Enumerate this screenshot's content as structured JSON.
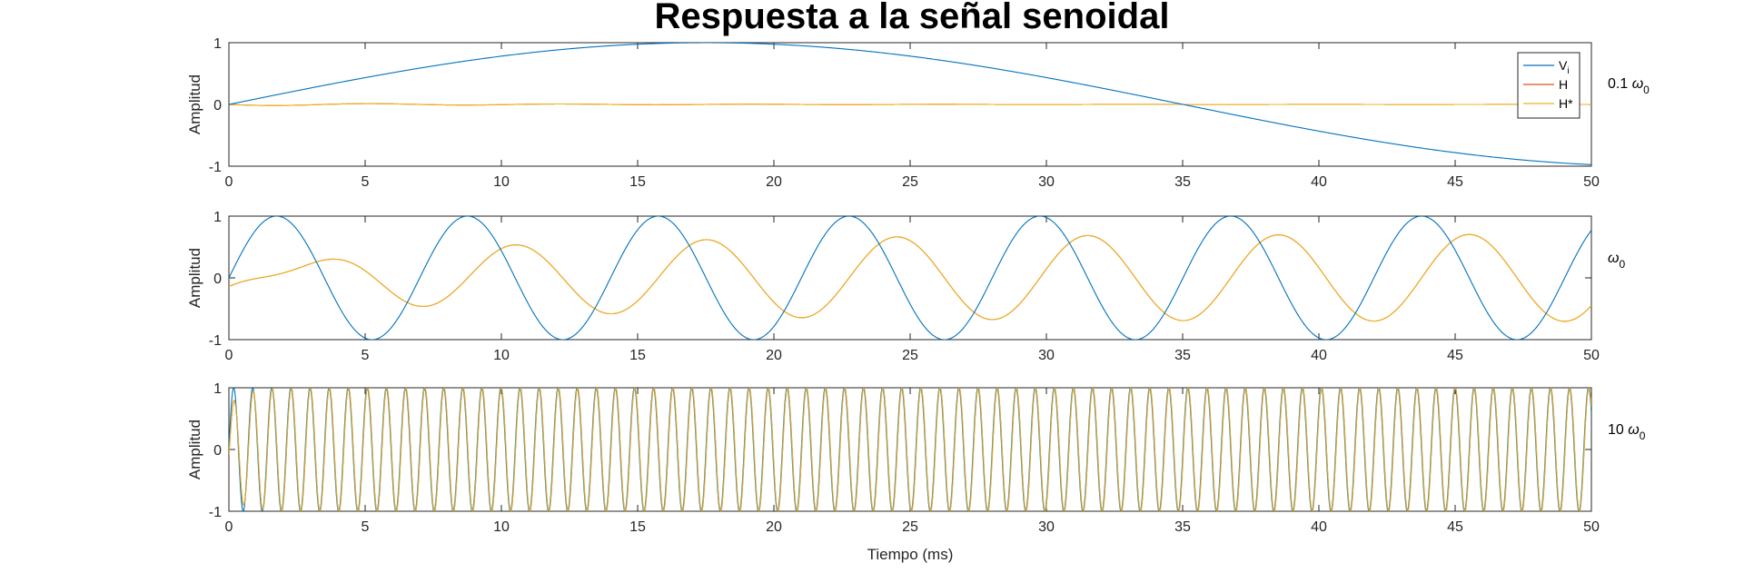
{
  "title": "Respuesta a la señal senoidal",
  "xlabel": "Tiempo (ms)",
  "ylabel": "Amplitud",
  "colors": {
    "Vi": "#0072BD",
    "H": "#D95319",
    "Hstar": "#EDB120"
  },
  "legend": {
    "placement": "top-right",
    "entries": [
      {
        "main": "V",
        "sub": "i"
      },
      {
        "main": "H",
        "sub": ""
      },
      {
        "main": "H*",
        "sub": ""
      }
    ]
  },
  "chart_data": [
    {
      "type": "line",
      "row_label": {
        "prefix": "0.1 ",
        "symbol": "ω",
        "sub": "0"
      },
      "x_ticks": [
        0,
        5,
        10,
        15,
        20,
        25,
        30,
        35,
        40,
        45,
        50
      ],
      "y_ticks": [
        -1,
        0,
        1
      ],
      "xlim": [
        0,
        50
      ],
      "ylim": [
        -1,
        1
      ],
      "grid": false,
      "series": [
        {
          "name": "Vi",
          "function": "sin(2*pi*f*t)",
          "frequency_kHz": 0.01428,
          "amplitude": 1
        },
        {
          "name": "H",
          "behavior": "hidden beneath H*"
        },
        {
          "name": "H*",
          "behavior": "small transient near 0 decaying to 0",
          "amplitude": 0.02
        }
      ]
    },
    {
      "type": "line",
      "row_label": {
        "prefix": "",
        "symbol": "ω",
        "sub": "0"
      },
      "x_ticks": [
        0,
        5,
        10,
        15,
        20,
        25,
        30,
        35,
        40,
        45,
        50
      ],
      "y_ticks": [
        -1,
        0,
        1
      ],
      "xlim": [
        0,
        50
      ],
      "ylim": [
        -1,
        1
      ],
      "grid": false,
      "series": [
        {
          "name": "Vi",
          "function": "sin(2*pi*f*t)",
          "frequency_kHz": 0.1428,
          "amplitude": 1
        },
        {
          "name": "H",
          "behavior": "hidden beneath H*"
        },
        {
          "name": "H*",
          "behavior": "oscillation with growing amplitude toward 0.707, lagging Vi by 90°",
          "steady_amplitude": 0.707
        }
      ]
    },
    {
      "type": "line",
      "row_label": {
        "prefix": "10 ",
        "symbol": "ω",
        "sub": "0"
      },
      "x_ticks": [
        0,
        5,
        10,
        15,
        20,
        25,
        30,
        35,
        40,
        45,
        50
      ],
      "y_ticks": [
        -1,
        0,
        1
      ],
      "xlim": [
        0,
        50
      ],
      "ylim": [
        -1,
        1
      ],
      "grid": false,
      "series": [
        {
          "name": "Vi",
          "function": "sin(2*pi*f*t)",
          "frequency_kHz": 1.428,
          "amplitude": 1
        },
        {
          "name": "H",
          "behavior": "hidden beneath H*"
        },
        {
          "name": "H*",
          "behavior": "follows Vi closely with slight lag",
          "amplitude": 1
        }
      ]
    }
  ]
}
